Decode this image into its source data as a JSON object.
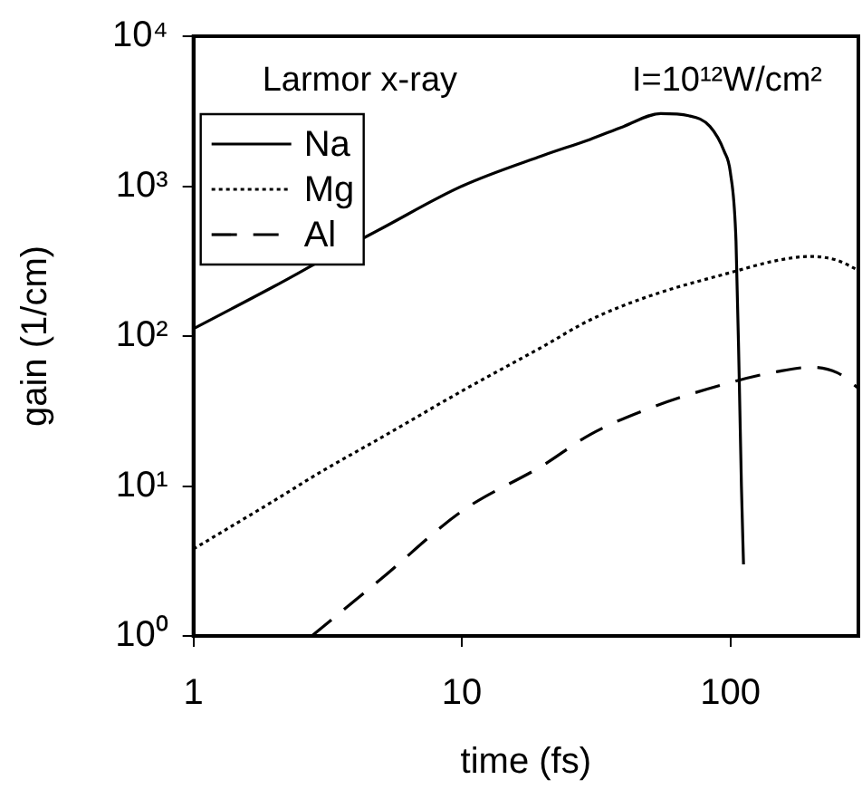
{
  "chart_data": {
    "type": "line",
    "xlabel": "time (fs)",
    "ylabel": "gain (1/cm)",
    "annotations": [
      "Larmor x-ray",
      "I=10¹²W/cm²"
    ],
    "log": "xy",
    "grid": false,
    "legend": "top left",
    "marker": "none",
    "xlim": [
      1,
      300
    ],
    "xticks": [
      1,
      10,
      100
    ],
    "ylim": [
      1,
      10000
    ],
    "yticks": [
      {
        "value": 1,
        "label": "10⁰"
      },
      {
        "value": 10,
        "label": "10¹"
      },
      {
        "value": 100,
        "label": "10²"
      },
      {
        "value": 1000,
        "label": "10³"
      },
      {
        "value": 10000,
        "label": "10⁴"
      }
    ],
    "series": [
      {
        "name": "Na",
        "color": "#000000",
        "line_style": "solid",
        "x": [
          1,
          2,
          3,
          5,
          10,
          20,
          30,
          40,
          55,
          70,
          84,
          95,
          100,
          105,
          108,
          110,
          112
        ],
        "values": [
          112,
          215,
          320,
          520,
          1000,
          1600,
          2050,
          2500,
          3050,
          2950,
          2500,
          1700,
          1240,
          430,
          50,
          10,
          3
        ]
      },
      {
        "name": "Mg",
        "color": "#000000",
        "line_style": "dotted",
        "x": [
          1,
          2,
          3,
          5,
          10,
          20,
          30,
          50,
          100,
          150,
          200,
          250,
          300
        ],
        "values": [
          3.8,
          8,
          12.5,
          21,
          43,
          85,
          128,
          185,
          265,
          320,
          340,
          320,
          275
        ]
      },
      {
        "name": "Al",
        "color": "#000000",
        "line_style": "dashed",
        "x": [
          2.76,
          5,
          10,
          20,
          30,
          50,
          100,
          150,
          200,
          250,
          300
        ],
        "values": [
          1,
          2.4,
          6.8,
          13.7,
          22,
          33,
          49,
          58,
          62,
          57,
          45
        ]
      }
    ]
  }
}
